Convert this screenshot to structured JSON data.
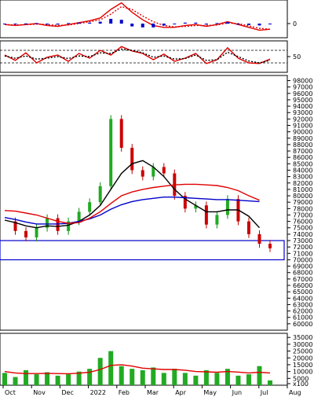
{
  "chart_data": [
    {
      "type": "line",
      "panel": "macd",
      "y_tick_labels": [
        "0"
      ],
      "ylim": [
        -1.5,
        2.5
      ],
      "x": [
        0,
        4,
        8,
        12,
        16,
        20,
        24,
        28,
        32,
        36,
        40,
        44,
        48,
        52,
        56,
        60,
        64,
        68,
        72,
        76,
        80,
        84,
        88,
        92,
        96,
        100
      ],
      "series": [
        {
          "role": "macd-line",
          "color": "#e00000",
          "values": [
            -0.1,
            -0.2,
            -0.1,
            0.0,
            -0.2,
            -0.3,
            -0.1,
            0.1,
            0.3,
            0.6,
            1.5,
            2.2,
            1.2,
            0.4,
            -0.2,
            -0.4,
            -0.4,
            -0.2,
            -0.1,
            -0.3,
            -0.1,
            0.2,
            -0.1,
            -0.4,
            -0.7,
            -0.6
          ]
        },
        {
          "role": "signal-line",
          "color": "#e00000",
          "style": "dotted",
          "values": [
            -0.1,
            -0.15,
            -0.12,
            -0.05,
            -0.1,
            -0.2,
            -0.15,
            0.0,
            0.2,
            0.4,
            1.0,
            1.8,
            1.5,
            0.8,
            0.2,
            -0.2,
            -0.35,
            -0.3,
            -0.2,
            -0.2,
            -0.15,
            0.05,
            0.0,
            -0.25,
            -0.5,
            -0.6
          ]
        },
        {
          "role": "histogram",
          "color": "#0000cc",
          "values": [
            0.0,
            -0.05,
            0.02,
            0.05,
            -0.1,
            -0.1,
            0.05,
            0.1,
            0.1,
            0.2,
            0.5,
            0.4,
            -0.3,
            -0.4,
            -0.4,
            -0.2,
            -0.05,
            0.1,
            0.1,
            -0.1,
            0.05,
            0.15,
            -0.1,
            -0.15,
            -0.2,
            0.0
          ]
        }
      ]
    },
    {
      "type": "line",
      "panel": "rsi",
      "y_tick_labels": [
        "50"
      ],
      "ylim": [
        0,
        100
      ],
      "reference_lines": [
        70,
        30
      ],
      "x": [
        0,
        4,
        8,
        12,
        16,
        20,
        24,
        28,
        32,
        36,
        40,
        44,
        48,
        52,
        56,
        60,
        64,
        68,
        72,
        76,
        80,
        84,
        88,
        92,
        96,
        100
      ],
      "series": [
        {
          "role": "rsi",
          "color": "#e00000",
          "values": [
            55,
            38,
            62,
            30,
            48,
            55,
            35,
            60,
            45,
            70,
            55,
            82,
            68,
            60,
            40,
            58,
            35,
            45,
            60,
            28,
            40,
            78,
            45,
            30,
            28,
            42
          ]
        },
        {
          "role": "rsi-signal",
          "color": "#000000",
          "style": "dotted",
          "values": [
            52,
            45,
            52,
            42,
            45,
            50,
            44,
            52,
            50,
            62,
            60,
            74,
            70,
            62,
            48,
            52,
            42,
            44,
            55,
            38,
            40,
            64,
            50,
            36,
            30,
            38
          ]
        }
      ]
    },
    {
      "type": "candlestick",
      "panel": "price",
      "y_tick_labels": [
        "98000",
        "97000",
        "96000",
        "95000",
        "94000",
        "93000",
        "92000",
        "91000",
        "90000",
        "89000",
        "88000",
        "87000",
        "86000",
        "85000",
        "84000",
        "83000",
        "82000",
        "81000",
        "80000",
        "79000",
        "78000",
        "77000",
        "76000",
        "75000",
        "74000",
        "73000",
        "72000",
        "71000",
        "70000",
        "69000",
        "68000",
        "67000",
        "66000",
        "65000",
        "64000",
        "63000",
        "62000",
        "61000",
        "60000"
      ],
      "ylim": [
        59000,
        98800
      ],
      "x_tick_labels": [
        "Oct",
        "Nov",
        "Dec",
        "2022",
        "Feb",
        "Mar",
        "Apr",
        "May",
        "Jun",
        "Jul",
        "Aug"
      ],
      "x": [
        0,
        4,
        8,
        12,
        16,
        20,
        24,
        28,
        32,
        36,
        40,
        44,
        48,
        52,
        56,
        60,
        64,
        68,
        72,
        76,
        80,
        84,
        88,
        92,
        96,
        100
      ],
      "close": [
        76000,
        74500,
        73500,
        75000,
        76500,
        74500,
        76000,
        77500,
        79000,
        81500,
        92000,
        87500,
        84000,
        83000,
        84500,
        83500,
        80000,
        78000,
        78500,
        75500,
        77000,
        79500,
        76000,
        74000,
        72500,
        71800
      ],
      "series": [
        {
          "role": "sma-short",
          "color": "#000000",
          "values": [
            76200,
            75800,
            75300,
            75000,
            75300,
            75200,
            75400,
            76000,
            77000,
            78500,
            81000,
            83500,
            85000,
            85500,
            84500,
            83000,
            81000,
            79500,
            78500,
            77500,
            77500,
            77800,
            77800,
            76800,
            75000,
            null
          ]
        },
        {
          "role": "sma-mid",
          "color": "#0000cc",
          "values": [
            76600,
            76300,
            75900,
            75600,
            75600,
            75600,
            75700,
            76000,
            76400,
            77000,
            77900,
            78600,
            79100,
            79400,
            79600,
            79800,
            79800,
            79700,
            79600,
            79500,
            79400,
            79400,
            79300,
            79200,
            79100,
            null
          ]
        },
        {
          "role": "sma-long",
          "color": "#e00000",
          "values": [
            77700,
            77600,
            77300,
            77000,
            76500,
            76000,
            75700,
            75800,
            76500,
            77500,
            78800,
            80000,
            80600,
            81000,
            81300,
            81500,
            81700,
            81800,
            81800,
            81700,
            81600,
            81300,
            80800,
            80000,
            79300,
            null
          ]
        }
      ],
      "support_zone": [
        70000,
        73000
      ]
    },
    {
      "type": "bar",
      "panel": "volume",
      "y_tick_labels": [
        "35000",
        "30000",
        "25000",
        "20000",
        "15000",
        "10000",
        "5000",
        "x100"
      ],
      "ylim": [
        0,
        38000
      ],
      "x": [
        0,
        4,
        8,
        12,
        16,
        20,
        24,
        28,
        32,
        36,
        40,
        44,
        48,
        52,
        56,
        60,
        64,
        68,
        72,
        76,
        80,
        84,
        88,
        92,
        96,
        100
      ],
      "values": [
        9000,
        6000,
        11000,
        8000,
        9500,
        7000,
        8000,
        10000,
        12000,
        20000,
        25000,
        14000,
        12000,
        11000,
        13000,
        9000,
        12000,
        9000,
        7000,
        11000,
        9000,
        12000,
        7000,
        8000,
        14000,
        3500
      ],
      "series": [
        {
          "role": "volume-average",
          "color": "#e00000",
          "values": [
            10000,
            9000,
            8500,
            8500,
            8700,
            8500,
            8400,
            8800,
            9500,
            11500,
            14500,
            15000,
            14000,
            12500,
            12000,
            11500,
            11500,
            11000,
            10000,
            9800,
            9500,
            10000,
            9600,
            9000,
            9500,
            9000
          ]
        }
      ]
    }
  ]
}
